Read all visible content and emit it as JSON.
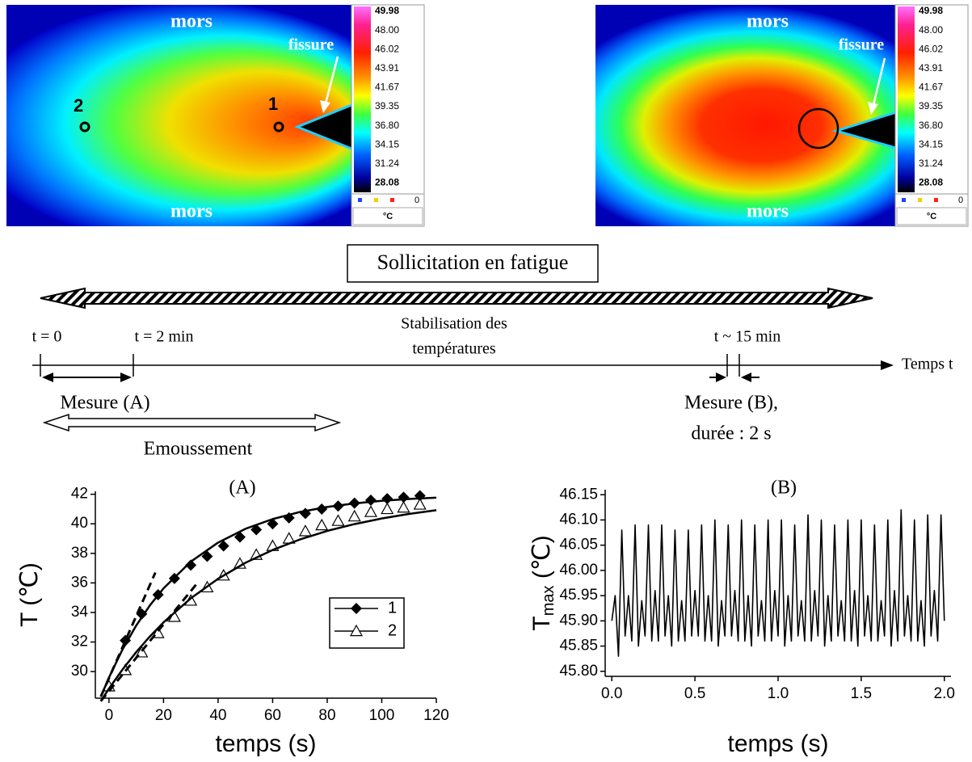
{
  "images": [
    {
      "top_label": "mors",
      "bottom_label": "mors",
      "crack_label": "fissure",
      "point_labels": [
        "2",
        "1"
      ],
      "colorbar": {
        "labels": [
          "49.98",
          "48.00",
          "46.02",
          "43.91",
          "41.67",
          "39.35",
          "36.80",
          "34.15",
          "31.24",
          "28.08"
        ],
        "legend_value": "0",
        "unit": "°C"
      }
    },
    {
      "top_label": "mors",
      "bottom_label": "mors",
      "crack_label": "fissure",
      "colorbar": {
        "labels": [
          "49.98",
          "48.00",
          "46.02",
          "43.91",
          "41.67",
          "39.35",
          "36.80",
          "34.15",
          "31.24",
          "28.08"
        ],
        "legend_value": "0",
        "unit": "°C"
      }
    }
  ],
  "timeline": {
    "title": "Sollicitation en fatigue",
    "start_label": "t = 0",
    "measure_a_end_label": "t = 2 min",
    "stabilization_label": [
      "Stabilisation des",
      "températures"
    ],
    "measure_b_label": "t ~ 15 min",
    "axis_label": "Temps t",
    "measure_a": "Mesure (A)",
    "blunting": "Emoussement",
    "measure_b": [
      "Mesure (B),",
      "durée : 2 s"
    ]
  },
  "chart_data": [
    {
      "type": "line",
      "title": "(A)",
      "xlabel": "temps (s)",
      "ylabel": "T (℃)",
      "xlim": [
        -5,
        120
      ],
      "ylim": [
        28.2,
        42.2
      ],
      "xticks": [
        0,
        20,
        40,
        60,
        80,
        100,
        120
      ],
      "yticks": [
        30,
        32,
        34,
        36,
        38,
        40,
        42
      ],
      "legend": "center right",
      "series": [
        {
          "name": "1",
          "color": "#000000",
          "marker": "diamond",
          "line_style": "none",
          "x": [
            6,
            12,
            18,
            24,
            30,
            36,
            42,
            48,
            54,
            60,
            66,
            72,
            78,
            84,
            90,
            96,
            102,
            108,
            114
          ],
          "values": [
            32.1,
            33.9,
            35.2,
            36.3,
            37.2,
            37.8,
            38.5,
            39.1,
            39.6,
            40.0,
            40.4,
            40.7,
            41.0,
            41.2,
            41.4,
            41.6,
            41.7,
            41.8,
            41.9
          ]
        },
        {
          "name": "2",
          "color": "#000000",
          "marker": "triangle",
          "line_style": "none",
          "x": [
            0,
            6,
            12,
            18,
            24,
            30,
            36,
            42,
            48,
            54,
            60,
            66,
            72,
            78,
            84,
            90,
            96,
            102,
            108,
            114
          ],
          "values": [
            29.0,
            30.1,
            31.3,
            32.6,
            33.7,
            34.8,
            35.7,
            36.5,
            37.3,
            37.9,
            38.5,
            39.0,
            39.5,
            39.9,
            40.2,
            40.5,
            40.8,
            41.0,
            41.1,
            41.3
          ]
        },
        {
          "color": "#000000",
          "line_style": "solid",
          "x": [
            -3,
            0,
            5,
            10,
            15,
            20,
            30,
            40,
            50,
            60,
            70,
            80,
            90,
            100,
            110,
            120
          ],
          "values": [
            28.3,
            29.6,
            31.51,
            33.12,
            34.48,
            35.63,
            37.44,
            38.73,
            39.66,
            40.32,
            40.8,
            41.14,
            41.38,
            41.56,
            41.68,
            41.77
          ]
        },
        {
          "color": "#000000",
          "line_style": "solid",
          "x": [
            -3,
            0,
            5,
            10,
            15,
            20,
            30,
            40,
            50,
            60,
            70,
            80,
            90,
            100,
            110,
            120
          ],
          "values": [
            28.0,
            28.85,
            30.15,
            31.32,
            32.38,
            33.33,
            34.96,
            36.28,
            37.36,
            38.23,
            38.94,
            39.52,
            39.98,
            40.36,
            40.67,
            40.92
          ]
        },
        {
          "color": "#000000",
          "line_style": "dashed",
          "x": [
            -3,
            17
          ],
          "values": [
            28.3,
            36.7
          ]
        },
        {
          "color": "#000000",
          "line_style": "dashed",
          "x": [
            -3,
            32
          ],
          "values": [
            28.0,
            35.9
          ]
        }
      ]
    },
    {
      "type": "line",
      "title": "(B)",
      "xlabel": "temps (s)",
      "ylabel": "T",
      "ylabel_subscript": "max",
      "ylabel_unit": " (℃)",
      "xlim": [
        -0.04,
        2.04
      ],
      "ylim": [
        45.79,
        46.16
      ],
      "xticks": [
        {
          "value": 0,
          "label": "0.0"
        },
        0.5,
        {
          "value": 1,
          "label": "1.0"
        },
        1.5,
        {
          "value": 2,
          "label": "2.0"
        }
      ],
      "yticks": [
        {
          "value": 45.8,
          "label": "45.80"
        },
        45.85,
        {
          "value": 45.9,
          "label": "45.90"
        },
        45.95,
        {
          "value": 46,
          "label": "46.00"
        },
        46.05,
        {
          "value": 46.1,
          "label": "46.10"
        },
        46.15
      ],
      "series": [
        {
          "color": "#000000",
          "line_style": "solid",
          "x": [
            0,
            0.02,
            0.04,
            0.06,
            0.08,
            0.1,
            0.12,
            0.14,
            0.16,
            0.18,
            0.2,
            0.22,
            0.24,
            0.26,
            0.28,
            0.3,
            0.32,
            0.34,
            0.36,
            0.38,
            0.4,
            0.42,
            0.44,
            0.46,
            0.48,
            0.5,
            0.52,
            0.54,
            0.56,
            0.58,
            0.6,
            0.62,
            0.64,
            0.66,
            0.68,
            0.7,
            0.72,
            0.74,
            0.76,
            0.78,
            0.8,
            0.82,
            0.84,
            0.86,
            0.88,
            0.9,
            0.92,
            0.94,
            0.96,
            0.98,
            1.0,
            1.02,
            1.04,
            1.06,
            1.08,
            1.1,
            1.12,
            1.14,
            1.16,
            1.18,
            1.2,
            1.22,
            1.24,
            1.26,
            1.28,
            1.3,
            1.32,
            1.34,
            1.36,
            1.38,
            1.4,
            1.42,
            1.44,
            1.46,
            1.48,
            1.5,
            1.52,
            1.54,
            1.56,
            1.58,
            1.6,
            1.62,
            1.64,
            1.66,
            1.68,
            1.7,
            1.72,
            1.74,
            1.76,
            1.78,
            1.8,
            1.82,
            1.84,
            1.86,
            1.88,
            1.9,
            1.92,
            1.94,
            1.96,
            1.98,
            2.0
          ],
          "values": [
            45.9,
            45.95,
            45.83,
            46.08,
            45.87,
            45.95,
            45.86,
            46.09,
            45.85,
            45.94,
            45.87,
            46.09,
            45.86,
            45.96,
            45.86,
            46.09,
            45.87,
            45.95,
            45.85,
            46.08,
            45.86,
            45.94,
            45.86,
            46.08,
            45.87,
            45.96,
            45.87,
            46.09,
            45.86,
            45.95,
            45.86,
            46.1,
            45.85,
            45.94,
            45.87,
            46.09,
            45.87,
            45.96,
            45.86,
            46.1,
            45.86,
            45.95,
            45.85,
            46.09,
            45.87,
            45.94,
            45.86,
            46.1,
            45.86,
            45.96,
            45.87,
            46.1,
            45.85,
            45.95,
            45.86,
            46.09,
            45.87,
            45.94,
            45.86,
            46.11,
            45.86,
            45.96,
            45.87,
            46.1,
            45.85,
            45.95,
            45.86,
            46.09,
            45.87,
            45.94,
            45.86,
            46.1,
            45.86,
            45.96,
            45.85,
            46.1,
            45.87,
            45.95,
            45.86,
            46.09,
            45.86,
            45.94,
            45.87,
            46.1,
            45.85,
            45.96,
            45.86,
            46.12,
            45.87,
            45.95,
            45.86,
            46.1,
            45.86,
            45.94,
            45.85,
            46.11,
            45.87,
            45.96,
            45.86,
            46.11,
            45.9
          ]
        }
      ]
    }
  ]
}
